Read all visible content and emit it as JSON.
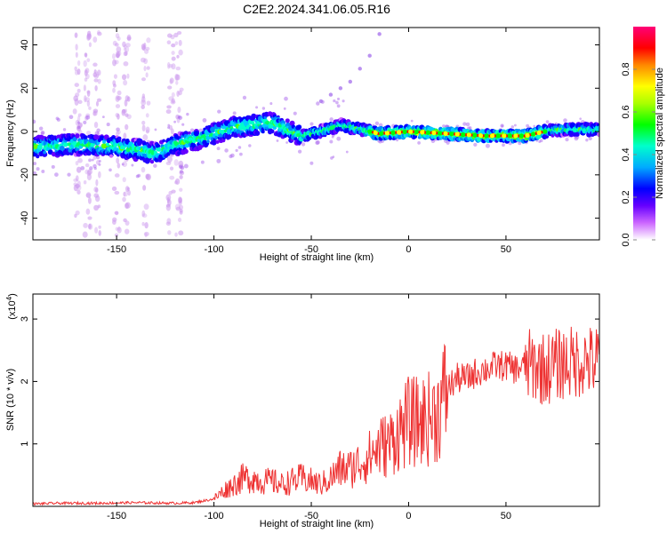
{
  "title": "C2E2.2024.341.06.05.R16",
  "chart_data": [
    {
      "type": "heatmap",
      "xlabel": "Height of straight line (km)",
      "ylabel": "Frequency (Hz)",
      "xlim": [
        -193,
        98
      ],
      "ylim": [
        -50,
        48
      ],
      "xticks": [
        -150,
        -100,
        -50,
        0,
        50
      ],
      "yticks": [
        -40,
        -20,
        0,
        20,
        40
      ],
      "colorbar": {
        "label": "Normalized spectral amplitude",
        "ticks": [
          0.0,
          0.2,
          0.4,
          0.6,
          0.8
        ],
        "range": [
          0,
          1
        ],
        "colors": [
          "#ffffff",
          "#cc66ff",
          "#5500ff",
          "#0000ff",
          "#00aaff",
          "#00ffcc",
          "#00ff00",
          "#aaff00",
          "#ffff00",
          "#ff8800",
          "#ff0000",
          "#ff0077"
        ]
      },
      "ridge": {
        "x": [
          -190,
          -170,
          -150,
          -130,
          -120,
          -110,
          -90,
          -70,
          -55,
          -45,
          -35,
          -25,
          -15,
          0,
          20,
          40,
          60,
          70,
          80,
          95
        ],
        "y": [
          -7,
          -6,
          -7,
          -10,
          -6,
          -4,
          2,
          4,
          -2,
          0,
          3,
          1,
          -1,
          0,
          -1,
          -2,
          -2,
          0,
          1,
          1
        ]
      },
      "harmonic": {
        "x": [
          -45,
          -40,
          -35,
          -30,
          -25,
          -20,
          -15
        ],
        "y": [
          14,
          17,
          20,
          23,
          29,
          35,
          45
        ]
      }
    },
    {
      "type": "line",
      "xlabel": "Height of straight line (km)",
      "ylabel": "SNR (10 * v/v)",
      "y_multiplier": "(x10",
      "y_multiplier_exp": "4",
      "xlim": [
        -193,
        98
      ],
      "ylim": [
        0,
        3.4
      ],
      "xticks": [
        -150,
        -100,
        -50,
        0,
        50
      ],
      "yticks": [
        1,
        2,
        3
      ],
      "color": "#ee3333",
      "series": [
        {
          "x": [
            -193,
            -180,
            -160,
            -140,
            -120,
            -110,
            -100,
            -95,
            -90,
            -85,
            -80,
            -75,
            -70,
            -65,
            -60,
            -55,
            -50,
            -45,
            -40,
            -35,
            -30,
            -25,
            -20,
            -15,
            -10,
            -5,
            0,
            5,
            10,
            15,
            20,
            25,
            30,
            35,
            40,
            45,
            50,
            55,
            60,
            65,
            70,
            75,
            80,
            85,
            90,
            95,
            98
          ],
          "y": [
            0.04,
            0.05,
            0.05,
            0.06,
            0.05,
            0.06,
            0.12,
            0.25,
            0.35,
            0.45,
            0.45,
            0.4,
            0.4,
            0.35,
            0.4,
            0.45,
            0.4,
            0.35,
            0.45,
            0.6,
            0.6,
            0.7,
            0.8,
            0.95,
            1.0,
            1.2,
            1.35,
            1.35,
            1.4,
            1.5,
            1.9,
            2.05,
            2.05,
            2.15,
            2.2,
            2.25,
            2.25,
            2.2,
            2.25,
            2.25,
            2.2,
            2.25,
            2.3,
            2.3,
            2.35,
            2.3,
            2.35
          ]
        }
      ]
    }
  ]
}
